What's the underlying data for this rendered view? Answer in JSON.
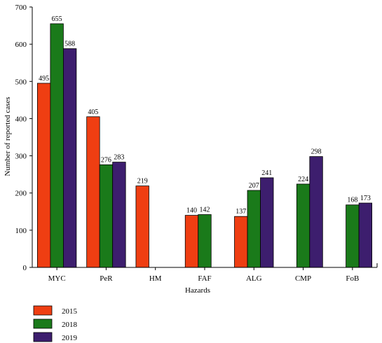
{
  "chart_data": {
    "type": "bar",
    "categories": [
      "MYC",
      "PeR",
      "HM",
      "FAF",
      "ALG",
      "CMP",
      "FoB"
    ],
    "series": [
      {
        "name": "2015",
        "color": "#ef3e12",
        "values": [
          495,
          405,
          219,
          140,
          137,
          null,
          null
        ]
      },
      {
        "name": "2018",
        "color": "#1a7a1a",
        "values": [
          655,
          276,
          null,
          142,
          207,
          224,
          168
        ]
      },
      {
        "name": "2019",
        "color": "#3d1e6e",
        "values": [
          588,
          283,
          null,
          null,
          241,
          298,
          173
        ]
      }
    ],
    "xlabel": "Hazards",
    "ylabel": "Number of reported cases",
    "ylim": [
      0,
      700
    ],
    "yticks": [
      0,
      100,
      200,
      300,
      400,
      500,
      600,
      700
    ],
    "grid": false,
    "legend_position": "bottom-left",
    "data_labels": true
  }
}
